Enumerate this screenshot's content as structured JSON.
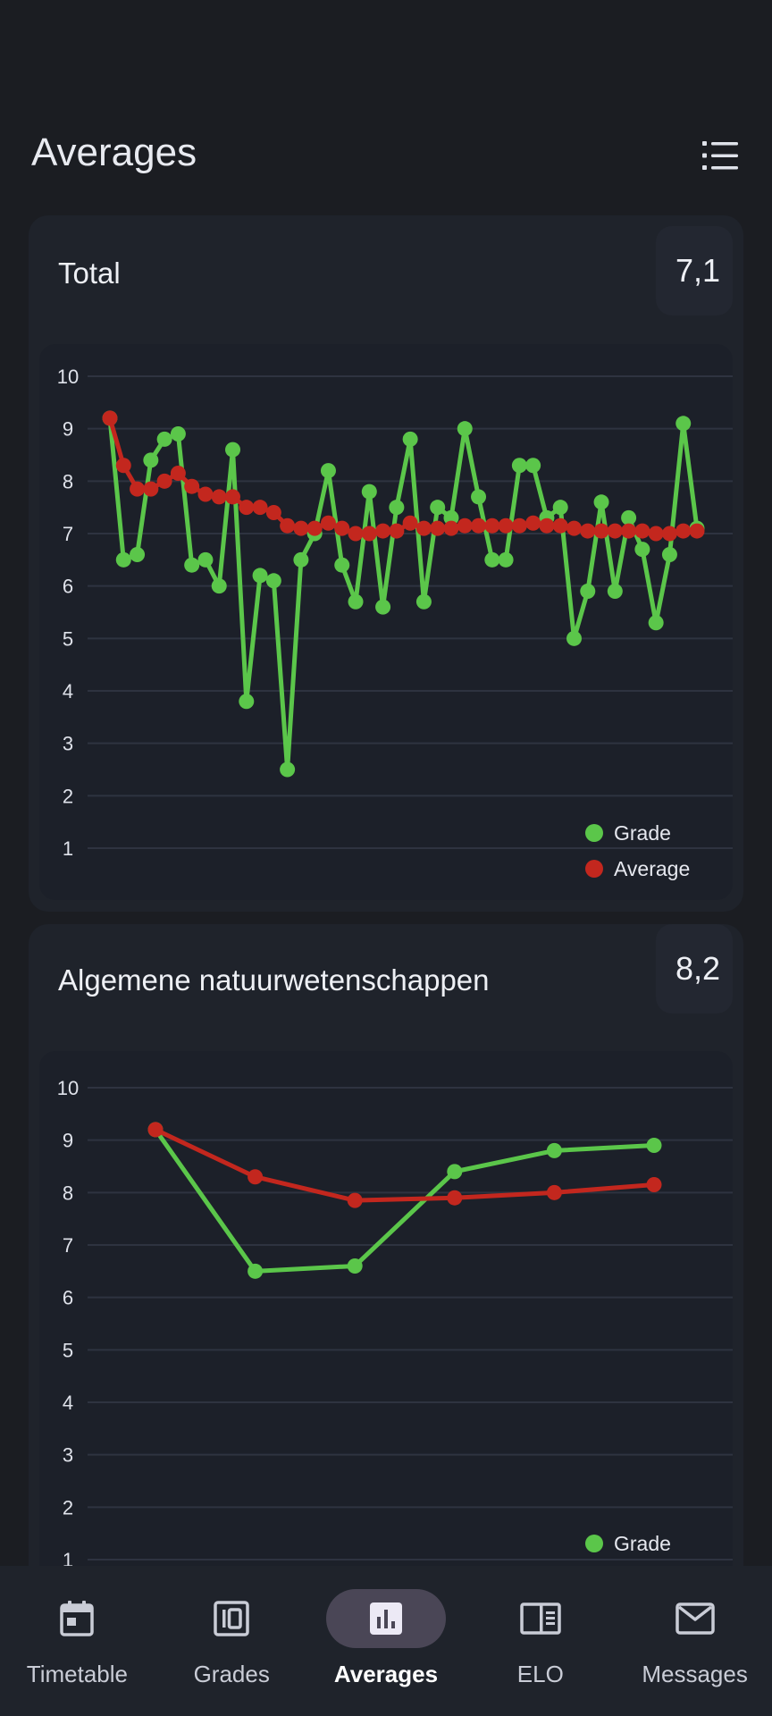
{
  "header": {
    "title": "Averages",
    "menu_icon": "list-icon"
  },
  "colors": {
    "grade": "#5bc64a",
    "average": "#c3271e",
    "grid": "#2e3340",
    "background": "#1b1d22"
  },
  "cards": [
    {
      "title": "Total",
      "average": "7,1",
      "chart_data": {
        "type": "line",
        "ylim": [
          0,
          10
        ],
        "yticks": [
          1,
          2,
          3,
          4,
          5,
          6,
          7,
          8,
          9,
          10
        ],
        "legend": [
          "Grade",
          "Average"
        ],
        "legend_position": "bottom-right",
        "grid": true,
        "series": [
          {
            "name": "Grade",
            "color": "#5bc64a",
            "values": [
              9.2,
              6.5,
              6.6,
              8.4,
              8.8,
              8.9,
              6.4,
              6.5,
              6.0,
              8.6,
              3.8,
              6.2,
              6.1,
              2.5,
              6.5,
              7.0,
              8.2,
              6.4,
              5.7,
              7.8,
              5.6,
              7.5,
              8.8,
              5.7,
              7.5,
              7.3,
              9.0,
              7.7,
              6.5,
              6.5,
              8.3,
              8.3,
              7.3,
              7.5,
              5.0,
              5.9,
              7.6,
              5.9,
              7.3,
              6.7,
              5.3,
              6.6,
              9.1,
              7.1
            ]
          },
          {
            "name": "Average",
            "color": "#c3271e",
            "values": [
              9.2,
              8.3,
              7.85,
              7.85,
              8.0,
              8.15,
              7.9,
              7.75,
              7.7,
              7.7,
              7.5,
              7.5,
              7.4,
              7.15,
              7.1,
              7.1,
              7.2,
              7.1,
              7.0,
              7.0,
              7.05,
              7.05,
              7.2,
              7.1,
              7.1,
              7.1,
              7.15,
              7.15,
              7.15,
              7.15,
              7.15,
              7.2,
              7.15,
              7.15,
              7.1,
              7.05,
              7.05,
              7.05,
              7.05,
              7.05,
              7.0,
              7.0,
              7.05,
              7.05
            ]
          }
        ]
      }
    },
    {
      "title": "Algemene natuurwetenschappen",
      "average": "8,2",
      "chart_data": {
        "type": "line",
        "ylim": [
          0,
          10
        ],
        "yticks": [
          1,
          2,
          3,
          4,
          5,
          6,
          7,
          8,
          9,
          10
        ],
        "legend": [
          "Grade"
        ],
        "legend_position": "bottom-right",
        "grid": true,
        "series": [
          {
            "name": "Grade",
            "color": "#5bc64a",
            "values": [
              9.2,
              6.5,
              6.6,
              8.4,
              8.8,
              8.9
            ]
          },
          {
            "name": "Average",
            "color": "#c3271e",
            "values": [
              9.2,
              8.3,
              7.85,
              7.9,
              8.0,
              8.15
            ]
          }
        ]
      }
    }
  ],
  "nav": [
    {
      "label": "Timetable",
      "icon": "calendar-icon",
      "active": false
    },
    {
      "label": "Grades",
      "icon": "grades-icon",
      "active": false
    },
    {
      "label": "Averages",
      "icon": "bar-chart-icon",
      "active": true
    },
    {
      "label": "ELO",
      "icon": "elo-icon",
      "active": false
    },
    {
      "label": "Messages",
      "icon": "mail-icon",
      "active": false
    }
  ]
}
